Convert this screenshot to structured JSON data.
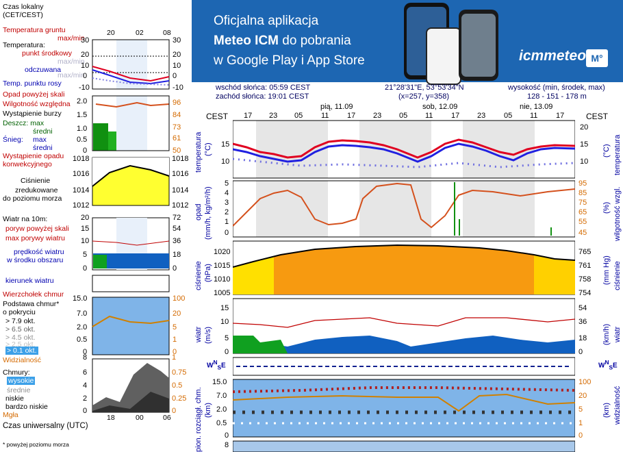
{
  "legend": {
    "time_local": "Czas lokalny",
    "time_local_sub": "(CET/CEST)",
    "soil_temp": "Temperatura gruntu",
    "soil_temp_sub": "max/min",
    "temperature": "Temperatura:",
    "mid_point": "punkt środkowy",
    "max_min": "max/min",
    "feels_like": "odczuwana",
    "max_min2": "max/min",
    "dew_point": "Temp. punktu rosy",
    "rain_over_scale": "Opad powyżej skali",
    "humidity": "Wilgotność względna",
    "storm": "Wystąpienie burzy",
    "rain_label": "Deszcz: max",
    "rain_avg": "średni",
    "snow_label": "Śnieg:",
    "snow_max": "max",
    "snow_avg": "średni",
    "convective": "Wystąpienie opadu",
    "convective2": "konwekcyjnego",
    "pressure": "Ciśnienie",
    "pressure2": "zredukowane",
    "pressure3": "do poziomu morza",
    "wind": "Wiatr na 10m:",
    "gust_over": "poryw powyżej skali",
    "max_gust": "max porywy wiatru",
    "wind_speed": "prędkość wiatru",
    "wind_area": "w środku obszaru",
    "wind_dir": "kierunek wiatru",
    "cloud_top": "Wierzchołek chmur",
    "cloud_base": "Podstawa chmur*",
    "cloud_base2": "o pokryciu",
    "okt1": "> 7.9 okt.",
    "okt2": "> 6.5 okt.",
    "okt3": "> 4.5 okt.",
    "okt4": "> 2.5 okt.",
    "okt5": "> 0.1 okt.",
    "visibility": "Widzialność",
    "clouds": "Chmury:",
    "high": "wysokie",
    "medium": "średnie",
    "low": "niskie",
    "very_low": "bardzo niskie",
    "fog": "Mgła",
    "utc": "Czas uniwersalny (UTC)",
    "footnote": "* powyżej poziomu morza",
    "top_hours": [
      "20",
      "02",
      "08"
    ],
    "bottom_hours": [
      "18",
      "00",
      "06"
    ]
  },
  "legend_axes": {
    "temp_left": [
      "30",
      "20",
      "10",
      "0",
      "-10"
    ],
    "temp_right": [
      "30",
      "20",
      "10",
      "0",
      "-10"
    ],
    "rain_left": [
      "2.0",
      "1.5",
      "1.0",
      "0.5",
      "0"
    ],
    "rain_right": [
      "96",
      "84",
      "73",
      "61",
      "50"
    ],
    "press_left": [
      "1018",
      "1016",
      "1014",
      "1012"
    ],
    "press_right": [
      "1018",
      "1016",
      "1014",
      "1012"
    ],
    "wind_left": [
      "20",
      "15",
      "10",
      "5",
      "0"
    ],
    "wind_right": [
      "72",
      "54",
      "36",
      "18",
      "0"
    ],
    "cb_left": [
      "15.0",
      "7.0",
      "2.0",
      "0.5",
      "0"
    ],
    "cb_right": [
      "100",
      "20",
      "5",
      "1",
      "0"
    ],
    "cl_left": [
      "8",
      "6",
      "4",
      "2",
      "0"
    ],
    "cl_right": [
      "1",
      "0.75",
      "0.5",
      "0.25",
      "0"
    ]
  },
  "banner": {
    "line1": "Oficjalna aplikacja",
    "line2_bold": "Meteo ICM",
    "line2_rest": " do pobrania",
    "line3": "w Google Play i App Store",
    "logo_text": "icmmeteo",
    "logo_badge": "M°"
  },
  "header": {
    "sunrise": "wschód słońca: 05:59 CEST",
    "sunset": "zachód słońca: 19:01 CEST",
    "coords": "21°28'31\"E, 53°53'34\"N",
    "grid": "(x=257,  y=358)",
    "elevation_label": "wysokość (min, środek, max)",
    "elevation": "128 - 151 - 178 m",
    "days": [
      "pią, 11.09",
      "sob, 12.09",
      "nie, 13.09"
    ],
    "cest_left": "CEST",
    "cest_right": "CEST",
    "hours": [
      "17",
      "23",
      "05",
      "11",
      "17",
      "23",
      "05",
      "11",
      "17",
      "23",
      "05",
      "11",
      "17"
    ]
  },
  "panels": {
    "temperature": {
      "left_label": "temperatura",
      "left_unit": "(°C)",
      "right_label": "temperatura",
      "right_unit": "(°C)",
      "ticks": [
        "20",
        "15",
        "10"
      ]
    },
    "rain": {
      "left_label": "opad",
      "left_unit": "(mm/h, kg/m²/h)",
      "right_label": "wilgotność wzgl.",
      "right_unit": "(%)",
      "ticks_left": [
        "5",
        "4",
        "3",
        "2",
        "1",
        "0"
      ],
      "ticks_right": [
        "95",
        "85",
        "75",
        "65",
        "55",
        "45"
      ]
    },
    "pressure": {
      "left_label": "ciśnienie",
      "left_unit": "(hPa)",
      "right_label": "ciśnienie",
      "right_unit": "(mm Hg)",
      "ticks_left": [
        "1020",
        "1015",
        "1010",
        "1005"
      ],
      "ticks_right": [
        "765",
        "761",
        "758",
        "754"
      ]
    },
    "wind": {
      "left_label": "wiatr",
      "left_unit": "(m/s)",
      "right_label": "wiatr",
      "right_unit": "(km/h)",
      "ticks_left": [
        "15",
        "10",
        "5",
        "0"
      ],
      "ticks_right": [
        "54",
        "36",
        "18",
        "0"
      ]
    },
    "clouds": {
      "left_label": "pion. rozciągł. chm.",
      "left_unit": "(km)",
      "right_label": "widzialność",
      "right_unit": "(km)",
      "ticks_left": [
        "15.0",
        "7.0",
        "2.0",
        "0.5",
        "0"
      ],
      "ticks_right": [
        "100",
        "20",
        "5",
        "1",
        "0"
      ]
    },
    "bottom_tick": "8"
  },
  "colors": {
    "banner_bg": "#1d66b2",
    "temp_red": "#e00020",
    "temp_blue": "#2020e0",
    "humidity_orange": "#d4501c",
    "pressure_fill": "#f79a10",
    "pressure_fill_low": "#ffe000",
    "wind_blue": "#1060c0",
    "wind_green": "#10a020",
    "cloud_bg": "#7fb4e8"
  }
}
